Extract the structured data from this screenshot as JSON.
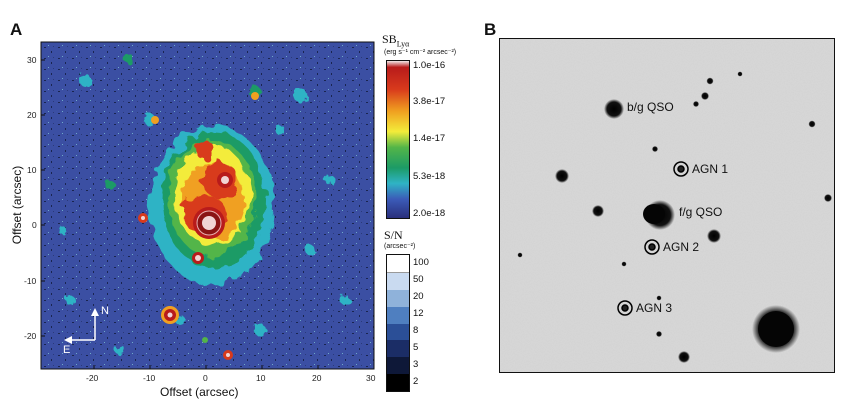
{
  "panel_a": {
    "letter": "A",
    "xlabel": "Offset (arcsec)",
    "ylabel": "Offset (arcsec)",
    "xticks": [
      "-20",
      "-10",
      "0",
      "10",
      "20",
      "30"
    ],
    "yticks": [
      "30",
      "20",
      "10",
      "0",
      "-10",
      "-20"
    ],
    "compass_n": "N",
    "compass_e": "E",
    "sb_colorbar": {
      "title": "SB",
      "title_sub": "Lyα",
      "units": "(erg s⁻¹ cm⁻² arcsec⁻²)",
      "ticks": [
        "1.0e-16",
        "3.8e-17",
        "1.4e-17",
        "5.3e-18",
        "2.0e-18"
      ]
    },
    "sn_colorbar": {
      "title": "S/N",
      "units": "(arcsec⁻²)",
      "ticks": [
        "100",
        "50",
        "20",
        "12",
        "8",
        "5",
        "3",
        "2"
      ]
    }
  },
  "panel_b": {
    "letter": "B",
    "labels": {
      "bg_qso": "b/g QSO",
      "agn1": "AGN 1",
      "fg_qso": "f/g QSO",
      "agn2": "AGN 2",
      "agn3": "AGN 3"
    }
  },
  "colors": {
    "background_blue": "#3b4fa3",
    "sn_steps": [
      "#ffffff",
      "#c9daf0",
      "#8fb2da",
      "#4f7fc0",
      "#2b4f97",
      "#1b2d66",
      "#0e1838",
      "#000000"
    ]
  }
}
